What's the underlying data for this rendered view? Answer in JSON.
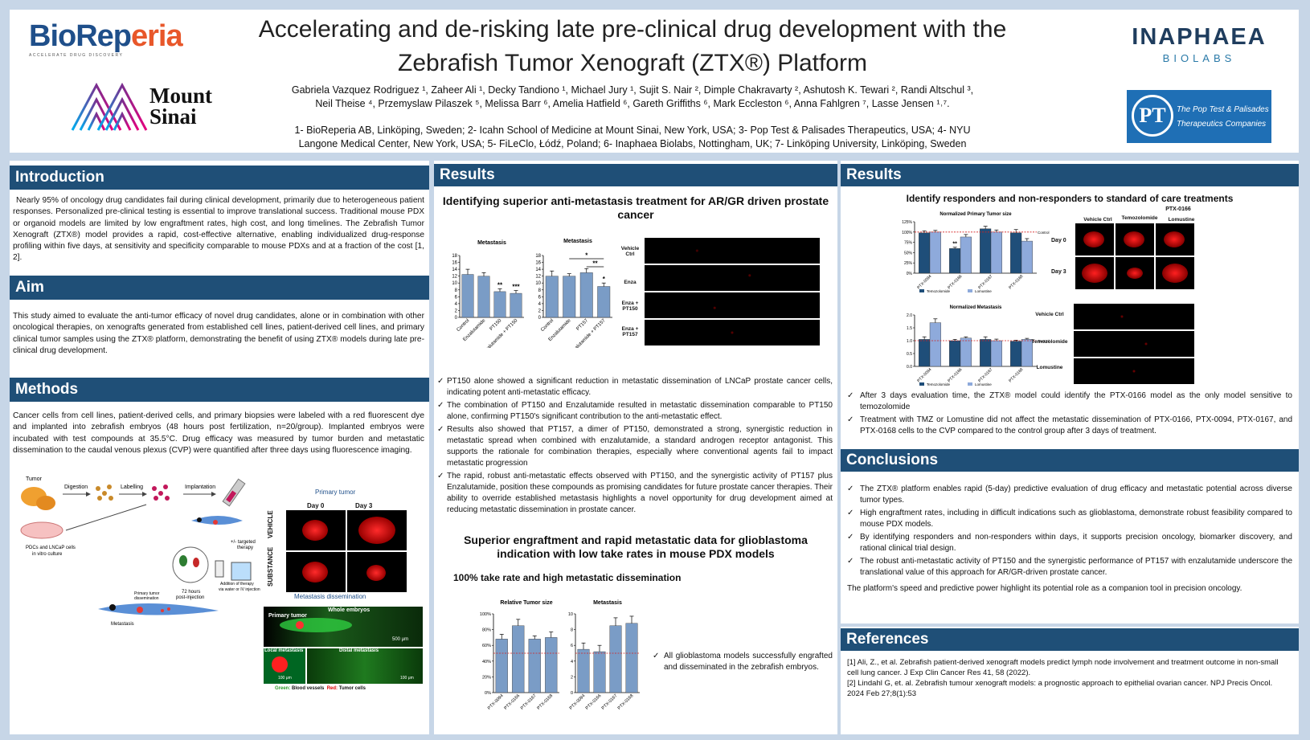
{
  "header": {
    "title_line1": "Accelerating and de-risking late pre-clinical drug development with the",
    "title_line2": "Zebrafish Tumor Xenograft (ZTX®) Platform",
    "authors_line1": "Gabriela Vazquez Rodriguez ¹, Zaheer Ali ¹, Decky Tandiono ¹, Michael Jury ¹, Sujit S. Nair ², Dimple Chakravarty ², Ashutosh K. Tewari ², Randi Altschul ³,",
    "authors_line2": "Neil Theise ⁴, Przemyslaw Pilaszek ⁵, Melissa Barr ⁶, Amelia Hatfield ⁶, Gareth Griffiths ⁶, Mark Eccleston ⁶, Anna Fahlgren ⁷, Lasse Jensen ¹˒⁷.",
    "affil_line1": "1- BioReperia AB, Linköping, Sweden; 2- Icahn School of Medicine at Mount Sinai, New York, USA; 3- Pop Test & Palisades Therapeutics, USA; 4- NYU",
    "affil_line2": "Langone Medical Center, New York, USA; 5- FiLeClo, Łódź, Poland; 6- Inaphaea Biolabs, Nottingham, UK; 7- Linköping University, Linköping, Sweden",
    "logo_bioreperia_a": "BioRep",
    "logo_bioreperia_b": "eria",
    "logo_bioreperia_tag": "ACCELERATE DRUG DISCOVERY",
    "logo_sinai_1": "Mount",
    "logo_sinai_2": "Sinai",
    "logo_inaphaea_1": "INAPHAEA",
    "logo_inaphaea_2": "BIOLABS",
    "logo_poptest_1": "The Pop Test & Palisades",
    "logo_poptest_2": "Therapeutics Companies"
  },
  "intro": {
    "heading": "Introduction",
    "text": "Nearly 95% of oncology drug candidates fail during clinical development, primarily due to heterogeneous patient responses. Personalized pre-clinical testing is essential to improve translational success. Traditional mouse PDX or organoid models are limited by low engraftment rates, high cost, and long timelines. The Zebrafish Tumor Xenograft (ZTX®) model provides a rapid, cost-effective alternative, enabling individualized drug-response profiling within five days, at sensitivity and specificity comparable to mouse PDXs and at a fraction of the cost [1, 2]."
  },
  "aim": {
    "heading": "Aim",
    "text": "This study aimed to evaluate the anti-tumor efficacy of novel drug candidates, alone or in combination with other oncological therapies, on xenografts generated from established cell lines, patient-derived cell lines, and primary clinical tumor samples using the ZTX® platform, demonstrating the benefit of using ZTX® models during late pre-clinical drug development."
  },
  "methods": {
    "heading": "Methods",
    "text": "Cancer cells from cell lines, patient-derived cells, and primary biopsies were labeled with a red fluorescent dye and implanted into zebrafish embryos (48 hours post fertilization, n=20/group). Implanted embryos were incubated with test compounds at 35.5°C. Drug efficacy was measured by tumor burden and metastatic dissemination to the caudal venous plexus (CVP) were quantified after three days using fluorescence imaging.",
    "schematic": {
      "tumor": "Tumor",
      "digestion": "Digestion",
      "labelling": "Labelling",
      "implantation": "Implantation",
      "pdcs": "PDCs and LNCaP cells",
      "pdcs2": "in vitro culture",
      "targeted": "+/- targeted",
      "therapy": "therapy",
      "hours": "72 hours",
      "post": "post-injection",
      "addition": "Addition of therapy",
      "via": "via water or IV injection",
      "primary": "Primary tumor",
      "dissemination": "dissemination",
      "metastasis": "Metastasis"
    },
    "primary_title": "Primary tumor",
    "day0": "Day 0",
    "day3": "Day 3",
    "vehicle": "VEHICLE",
    "substance": "SUBSTANCE",
    "meta_title": "Metastasis dissemination",
    "whole": "Whole embryos",
    "primary_label": "Primary tumor",
    "scale1": "500 μm",
    "local": "Local metastasis",
    "distal": "Distal metastasis",
    "scale2": "100 μm",
    "scale3": "100 μm",
    "legend_green": "Green:",
    "legend_green_t": " Blood vessels",
    "legend_red": "Red:",
    "legend_red_t": " Tumor cells"
  },
  "results1": {
    "heading": "Results",
    "sub1": "Identifying superior anti-metastasis treatment for AR/GR driven prostate cancer",
    "bullets": [
      "PT150 alone showed a significant reduction in metastatic dissemination of LNCaP prostate cancer cells, indicating potent anti-metastatic efficacy.",
      "The combination of PT150 and Enzalutamide resulted in metastatic dissemination comparable to PT150 alone, confirming PT150's significant contribution to the anti-metastatic effect.",
      "Results also showed that PT157, a dimer of PT150, demonstrated a strong, synergistic reduction in metastatic spread when combined with enzalutamide, a standard androgen receptor antagonist. This supports the rationale for combination therapies, especially where conventional agents fail to impact metastatic progression",
      "The rapid, robust anti-metastatic effects observed with PT150, and the synergistic activity of PT157 plus Enzalutamide, position these compounds as promising candidates for future prostate cancer therapies. Their ability to override established metastasis highlights a novel opportunity for drug development aimed at reducing metastatic dissemination in prostate cancer."
    ],
    "sub2": "Superior engraftment and rapid metastatic data for glioblastoma indication with low take rates in mouse PDX models",
    "sub3": "100% take rate and high metastatic dissemination",
    "gbm_bullet": "All glioblastoma models successfully engrafted and disseminated in the zebrafish embryos.",
    "micro_labels": [
      "Vehicle Ctrl",
      "Enza",
      "Enza + PT150",
      "Enza + PT157"
    ]
  },
  "results2": {
    "heading": "Results",
    "sub": "Identify responders and non-responders to standard of care treatments",
    "ptx_title": "PTX-0166",
    "cols": [
      "Vehicle Ctrl",
      "Temozolomide",
      "Lomustine"
    ],
    "rows": [
      "Day 0",
      "Day 3"
    ],
    "micro_rows": [
      "Vehicle Ctrl",
      "Temozolomide",
      "Lomustine"
    ],
    "bullets": [
      "After 3 days evaluation time, the ZTX® model could identify the PTX-0166 model as the only model sensitive to temozolomide",
      "Treatment with TMZ or Lomustine did not affect the metastatic dissemination of PTX-0166, PTX-0094, PTX-0167, and PTX-0168 cells to the CVP compared to the control group after 3 days of treatment."
    ]
  },
  "conclusions": {
    "heading": "Conclusions",
    "bullets": [
      "The ZTX® platform enables rapid (5-day) predictive evaluation of drug efficacy and metastatic potential across diverse tumor types.",
      "High engraftment rates, including in difficult indications such as glioblastoma, demonstrate robust feasibility compared to mouse PDX models.",
      "By identifying responders and non-responders within days, it supports precision oncology, biomarker discovery, and rational clinical trial design.",
      "The robust anti-metastatic activity of PT150 and the synergistic performance of PT157 with enzalutamide underscore the translational value of this approach for AR/GR-driven prostate cancer."
    ],
    "closing": "The platform's speed and predictive power highlight its potential role as a companion tool in precision oncology."
  },
  "references": {
    "heading": "References",
    "items": [
      "[1] Ali, Z., et al. Zebrafish patient-derived xenograft models predict lymph node involvement and treatment outcome in non-small cell lung cancer. J Exp Clin Cancer Res 41, 58 (2022).",
      "[2] Lindahl G, et. al. Zebrafish tumour xenograft models: a prognostic approach to epithelial ovarian cancer. NPJ Precis Oncol. 2024 Feb 27;8(1):53"
    ]
  },
  "colors": {
    "bar": "#7a9cc6",
    "dark": "#1f4e79",
    "light": "#8eaadb",
    "ref": "#d42020"
  },
  "chart_data": [
    {
      "type": "bar",
      "title": "Metastasis",
      "categories": [
        "Control",
        "Enzalutamide",
        "PT150",
        "Enzalutamide + PT150"
      ],
      "values": [
        12.5,
        12,
        7.5,
        7
      ],
      "errors": [
        1.5,
        1,
        0.8,
        0.8
      ],
      "annotations": [
        "",
        "",
        "**",
        "***"
      ],
      "ylim": [
        0,
        18
      ],
      "yticks": [
        0,
        2,
        4,
        6,
        8,
        10,
        12,
        14,
        16,
        18
      ]
    },
    {
      "type": "bar",
      "title": "Metastasis",
      "categories": [
        "Control",
        "Enzalutamide",
        "PT157",
        "Enzalutamide + PT157"
      ],
      "values": [
        12,
        12,
        13,
        9
      ],
      "errors": [
        1.5,
        0.7,
        1.2,
        1
      ],
      "annotations": [
        "",
        "",
        "",
        "*"
      ],
      "brackets": [
        "*",
        "**"
      ],
      "ylim": [
        0,
        18
      ],
      "yticks": [
        0,
        2,
        4,
        6,
        8,
        10,
        12,
        14,
        16,
        18
      ]
    },
    {
      "type": "bar",
      "title": "Relative Tumor size",
      "categories": [
        "PTX-0094",
        "PTX-0166",
        "PTX-0167",
        "PTX-0168"
      ],
      "values": [
        68,
        85,
        68,
        70
      ],
      "errors": [
        6,
        8,
        4,
        7
      ],
      "reference": 50,
      "ylim": [
        0,
        100
      ],
      "yticks": [
        "0%",
        "20%",
        "40%",
        "60%",
        "80%",
        "100%"
      ]
    },
    {
      "type": "bar",
      "title": "Metastasis",
      "categories": [
        "PTX-0094",
        "PTX-0166",
        "PTX-0167",
        "PTX-0168"
      ],
      "values": [
        5.5,
        5.2,
        8.5,
        8.8
      ],
      "errors": [
        0.8,
        0.8,
        1,
        0.9
      ],
      "reference": 5,
      "ylim": [
        0,
        10
      ],
      "yticks": [
        "0",
        "2",
        "4",
        "6",
        "8",
        "10"
      ]
    },
    {
      "type": "bar",
      "title": "Normalized Primary Tumor size",
      "categories": [
        "PTX-0094",
        "PTX-0166",
        "PTX-0167",
        "PTX-0168"
      ],
      "series": [
        {
          "name": "Temozolomide",
          "values": [
            98,
            60,
            108,
            98
          ],
          "errors": [
            5,
            3,
            6,
            8
          ]
        },
        {
          "name": "Lomustine",
          "values": [
            100,
            88,
            100,
            78
          ],
          "errors": [
            4,
            6,
            5,
            6
          ]
        }
      ],
      "annotations": [
        "",
        "**",
        "",
        ""
      ],
      "reference": 100,
      "reference_label": "Control",
      "ylim": [
        0,
        125
      ],
      "yticks": [
        "0%",
        "25%",
        "50%",
        "75%",
        "100%",
        "125%"
      ]
    },
    {
      "type": "bar",
      "title": "Normalized Metastasis",
      "categories": [
        "PTX-0094",
        "PTX-0166",
        "PTX-0167",
        "PTX-0168"
      ],
      "series": [
        {
          "name": "Temozolomide",
          "values": [
            1.05,
            1.0,
            1.05,
            0.98
          ],
          "errors": [
            0.1,
            0.05,
            0.1,
            0.04
          ]
        },
        {
          "name": "Lomustine",
          "values": [
            1.7,
            1.1,
            1.0,
            1.05
          ],
          "errors": [
            0.15,
            0.05,
            0.06,
            0.04
          ]
        }
      ],
      "annotations": [
        "**",
        "",
        "",
        ""
      ],
      "reference": 1,
      "reference_label": "Control",
      "ylim": [
        0,
        2
      ],
      "yticks": [
        "0.0",
        "0.5",
        "1.0",
        "1.5",
        "2.0"
      ]
    }
  ]
}
